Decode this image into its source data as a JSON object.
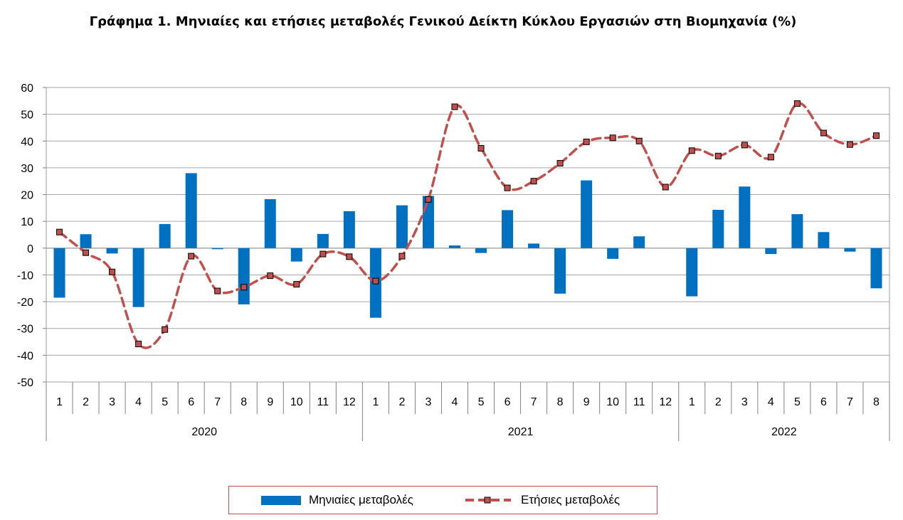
{
  "title": "Γράφημα 1. Μηνιαίες και ετήσιες μεταβολές  Γενικού Δείκτη Κύκλου Εργασιών στη Βιομηχανία (%)",
  "chart_data": {
    "type": "bar",
    "title": "Γράφημα 1. Μηνιαίες και ετήσιες μεταβολές  Γενικού Δείκτη Κύκλου Εργασιών στη Βιομηχανία (%)",
    "categories": [
      "1",
      "2",
      "3",
      "4",
      "5",
      "6",
      "7",
      "8",
      "9",
      "10",
      "11",
      "12",
      "1",
      "2",
      "3",
      "4",
      "5",
      "6",
      "7",
      "8",
      "9",
      "10",
      "11",
      "12",
      "1",
      "2",
      "3",
      "4",
      "5",
      "6",
      "7",
      "8"
    ],
    "groups": [
      {
        "label": "2020",
        "count": 12
      },
      {
        "label": "2021",
        "count": 12
      },
      {
        "label": "2022",
        "count": 8
      }
    ],
    "ylim": [
      -50,
      60
    ],
    "yticks": [
      60,
      50,
      40,
      30,
      20,
      10,
      0,
      -10,
      -20,
      -30,
      -40,
      -50
    ],
    "grid": true,
    "legend_position": "bottom",
    "series": [
      {
        "name": "Μηνιαίες μεταβολές",
        "type": "bar",
        "color": "#0070c0",
        "values": [
          -18.5,
          5.2,
          -2.0,
          -22.0,
          9.0,
          28.0,
          -0.4,
          -21.0,
          18.3,
          -5.0,
          5.3,
          13.8,
          -26.0,
          16.0,
          19.5,
          1.0,
          -1.8,
          14.2,
          1.7,
          -17.0,
          25.3,
          -4.0,
          4.4,
          0.0,
          -18.0,
          14.3,
          23.0,
          -2.2,
          12.7,
          6.0,
          -1.3,
          -15.0
        ]
      },
      {
        "name": "Ετήσιες μεταβολές",
        "type": "line",
        "color": "#c0504d",
        "dashed": true,
        "values": [
          6.0,
          -1.7,
          -8.9,
          -35.8,
          -30.4,
          -3.0,
          -16.0,
          -14.6,
          -10.3,
          -13.5,
          -2.2,
          -3.2,
          -12.3,
          -3.0,
          18.2,
          52.8,
          37.3,
          22.5,
          25.0,
          31.7,
          39.7,
          41.2,
          40.0,
          22.8,
          36.4,
          34.4,
          38.5,
          34.0,
          54.0,
          43.0,
          38.7,
          42.0
        ]
      }
    ]
  },
  "legend": {
    "bar_label": "Μηνιαίες μεταβολές",
    "line_label": "Ετήσιες μεταβολές"
  }
}
